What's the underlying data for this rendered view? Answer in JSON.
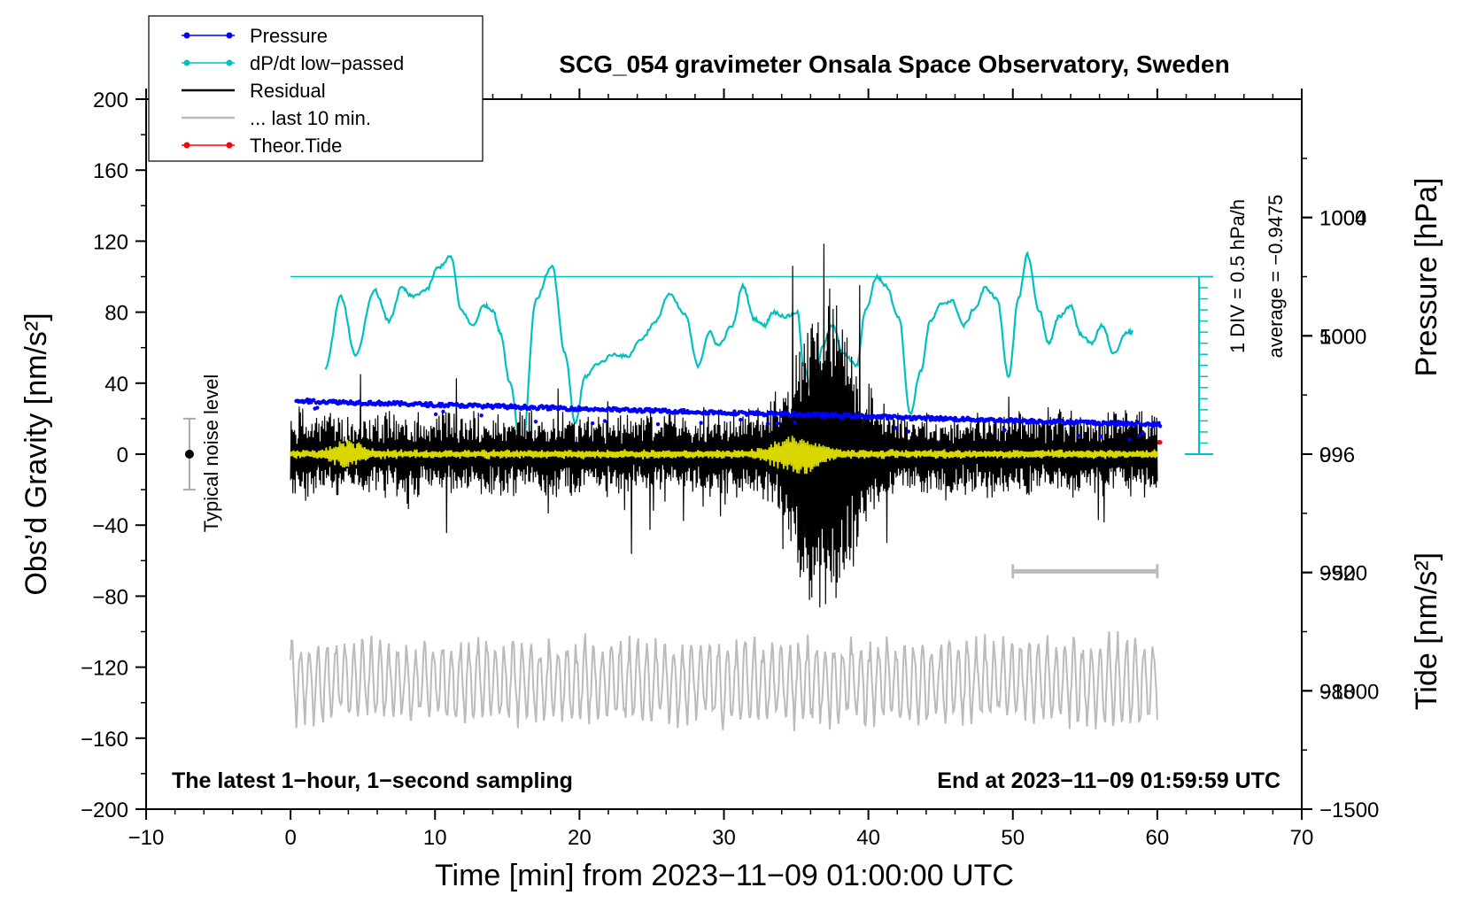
{
  "chart_data": {
    "type": "line",
    "title": "SCG_054 gravimeter Onsala Space Observatory, Sweden",
    "xlabel": "Time [min] from 2023−11−09 01:00:00 UTC",
    "ylabel_left": "Obs’d Gravity [nm/s²]",
    "ylabel_right_top": "Pressure [hPa]",
    "ylabel_right_bottom": "Tide [nm/s²]",
    "xlim": [
      -10,
      70
    ],
    "ylim": [
      -200,
      200
    ],
    "x_ticks": [
      -10,
      0,
      10,
      20,
      30,
      40,
      50,
      60,
      70
    ],
    "x_tick_labels": [
      "−10",
      "0",
      "10",
      "20",
      "30",
      "40",
      "50",
      "60",
      "70"
    ],
    "y_ticks": [
      200,
      160,
      120,
      80,
      40,
      0,
      -40,
      -80,
      -120,
      -160,
      -200
    ],
    "y_tick_labels": [
      "200",
      "160",
      "120",
      "80",
      "40",
      "0",
      "−40",
      "−80",
      "−120",
      "−160",
      "−200"
    ],
    "pressure_axis": {
      "ticks": [
        1004,
        1000,
        996,
        992,
        988
      ],
      "tick_labels": [
        "1004",
        "1000",
        "996",
        "992",
        "988"
      ],
      "range_hpa": [
        984,
        1008
      ]
    },
    "tide_axis": {
      "ticks": [
        1000,
        500,
        0,
        -500,
        -1000,
        -1500
      ],
      "tick_labels": [
        "1000",
        "500",
        "0",
        "−500",
        "−1000",
        "−1500"
      ],
      "range": [
        -1500,
        1500
      ]
    },
    "legend": [
      {
        "label": "Pressure",
        "color": "#0000ff",
        "marker": true
      },
      {
        "label": "dP/dt low−passed",
        "color": "#00c0c0",
        "marker": true
      },
      {
        "label": "Residual",
        "color": "#000000",
        "marker": false
      },
      {
        "label": "... last 10 min.",
        "color": "#bbbbbb",
        "marker": false
      },
      {
        "label": "Theor.Tide",
        "color": "#ff0000",
        "marker": true
      }
    ],
    "series": [
      {
        "name": "Pressure",
        "unit": "hPa",
        "start": [
          0.4,
          997.8
        ],
        "end": [
          60.2,
          997.0
        ]
      },
      {
        "name": "Theor.Tide",
        "unit": "nm/s²",
        "start": [
          0.4,
          -50
        ],
        "end": [
          60.2,
          50
        ]
      },
      {
        "name": "dP/dt low−passed",
        "unit": "hPa/h",
        "x": [
          2.4,
          3.5,
          4.5,
          5.8,
          6.8,
          7.7,
          8.4,
          9.4,
          10.2,
          11.1,
          11.8,
          12.6,
          13.4,
          14.0,
          14.5,
          15.2,
          16.0,
          17.0,
          18.1,
          19.0,
          19.7,
          20.4,
          21.3,
          22.4,
          23.3,
          24.3,
          25.2,
          26.2,
          27.3,
          28.2,
          29.0,
          29.6,
          30.6,
          31.3,
          32.1,
          32.8,
          33.4,
          34.3,
          35.1,
          35.5,
          36.2,
          36.8,
          37.5,
          38.3,
          39.2,
          39.8,
          40.6,
          41.2,
          42.1,
          42.9,
          43.6,
          44.3,
          45.1,
          45.8,
          46.6,
          47.4,
          48.1,
          48.9,
          49.7,
          50.4,
          51.0,
          51.8,
          52.5,
          53.2,
          54.0,
          54.7,
          55.4,
          56.2,
          57.0,
          57.9,
          58.3
        ],
        "y": [
          -4.1,
          -0.9,
          -3.6,
          -0.6,
          -2.0,
          -0.5,
          -0.9,
          -0.6,
          0.4,
          0.9,
          -1.5,
          -2.2,
          -1.3,
          -1.5,
          -2.5,
          -4.8,
          -8.0,
          -1.0,
          0.5,
          -3.5,
          -6.6,
          -4.5,
          -3.9,
          -3.5,
          -3.6,
          -2.8,
          -2.1,
          -0.8,
          -1.7,
          -4.0,
          -2.5,
          -3.1,
          -2.2,
          -0.4,
          -1.9,
          -2.2,
          -1.6,
          -1.8,
          -1.6,
          -4.0,
          -5.5,
          -3.2,
          -2.2,
          -3.5,
          -4.0,
          -1.5,
          0.0,
          -0.4,
          -1.8,
          -6.2,
          -4.3,
          -2.0,
          -1.2,
          -1.1,
          -2.2,
          -1.4,
          -0.5,
          -1.0,
          -4.5,
          -1.0,
          1.0,
          -1.5,
          -3.0,
          -1.8,
          -1.3,
          -2.6,
          -3.0,
          -2.2,
          -3.5,
          -2.5,
          -2.5
        ]
      },
      {
        "name": "Residual",
        "unit": "nm/s²",
        "x_range": [
          0,
          60
        ],
        "noise_amplitude": 20,
        "event_x": [
          32,
          42
        ],
        "event_peak": 85
      },
      {
        "name": "... last 10 min.",
        "unit": "nm/s² (offset)",
        "x_range": [
          0,
          60
        ],
        "center": -128,
        "amplitude": 25
      }
    ],
    "dpdt_axis": {
      "zero_line": 0,
      "top_line": 8,
      "div": 0.5,
      "average_level": -0.9475
    },
    "noise_level": {
      "x": -7,
      "center": 0,
      "range": [
        -20,
        20
      ]
    },
    "scale_bar_min": [
      50,
      60
    ],
    "scale_bar_y": -66,
    "annotations": {
      "div": "1 DIV = 0.5 hPa/h",
      "average": "average = −0.9475",
      "noise": "Typical noise level",
      "bottom_left": "The latest 1−hour, 1−second sampling",
      "bottom_right": "End at 2023−11−09 01:59:59 UTC"
    }
  }
}
